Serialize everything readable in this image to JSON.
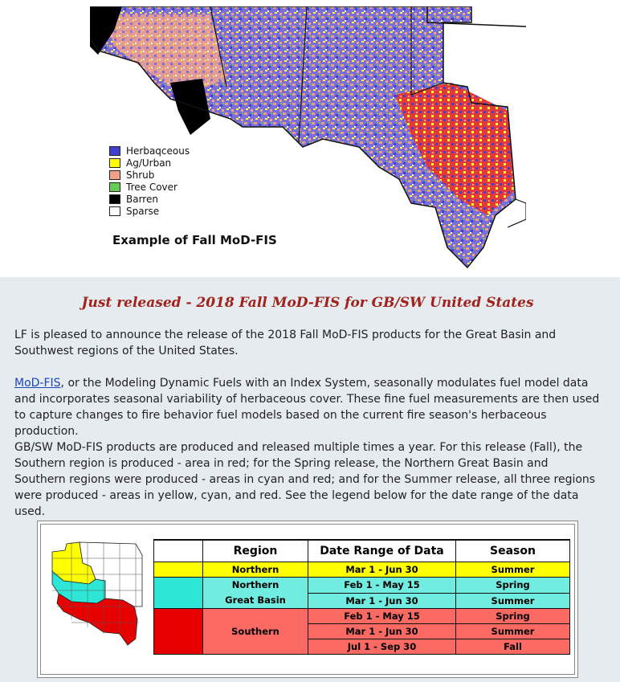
{
  "hero": {
    "legend": [
      {
        "label": "Herbaqceous",
        "color": "#4040d0"
      },
      {
        "label": "Ag/Urban",
        "color": "#ffff00"
      },
      {
        "label": "Shrub",
        "color": "#f2a08a"
      },
      {
        "label": "Tree Cover",
        "color": "#66cc55"
      },
      {
        "label": "Barren",
        "color": "#000000"
      },
      {
        "label": "Sparse",
        "color": "#ffffff"
      }
    ],
    "caption": "Example of Fall MoD-FIS"
  },
  "article": {
    "headline": "Just released - 2018 Fall MoD-FIS for GB/SW United States",
    "p1": "LF is pleased to announce the release of the 2018 Fall MoD-FIS products for the Great Basin and Southwest regions of the United States.",
    "p2_link": "MoD-FIS",
    "p2_rest": ", or the Modeling Dynamic Fuels with an Index System, seasonally modulates fuel model data and incorporates seasonal variability of herbaceous cover. These fine fuel measurements are then used to capture changes to fire behavior fuel models based on the current fire season's herbaceous production.",
    "p3": "GB/SW MoD-FIS products are produced and released multiple times a year. For this release (Fall), the Southern region is produced - area in red; for the Spring release, the Northern Great Basin and Southern regions were produced - areas in cyan and red; and for the Summer release, all three regions were produced - areas in yellow, cyan, and red. See the legend below for the date range of the data used."
  },
  "table": {
    "headers": [
      "Region",
      "Date Range of Data",
      "Season"
    ],
    "regions": {
      "northern": "Northern",
      "ngb_line1": "Northern",
      "ngb_line2": "Great Basin",
      "southern": "Southern"
    },
    "rows": [
      {
        "range": "Mar 1 - Jun 30",
        "season": "Summer"
      },
      {
        "range": "Feb 1 - May 15",
        "season": "Spring"
      },
      {
        "range": "Mar 1 - Jun 30",
        "season": "Summer"
      },
      {
        "range": "Feb 1 - May 15",
        "season": "Spring"
      },
      {
        "range": "Mar 1 - Jun 30",
        "season": "Summer"
      },
      {
        "range": "Jul 1 - Sep 30",
        "season": "Fall"
      }
    ]
  },
  "colors": {
    "headline": "#a3211a",
    "content_bg": "#e5ebef",
    "northern": "#ffff00",
    "northern_great_basin": "#2ee6d6",
    "southern": "#e60000"
  }
}
